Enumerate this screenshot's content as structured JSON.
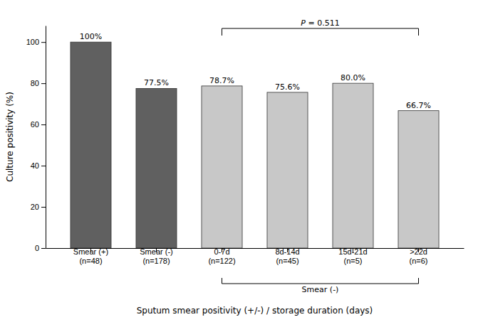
{
  "chart_data": {
    "type": "bar",
    "categories": [
      "Smear (+)\n(n=48)",
      "Smear (-)\n(n=178)",
      "0-7d\n(n=122)",
      "8d-14d\n(n=45)",
      "15d-21d\n(n=5)",
      ">22d\n(n=6)"
    ],
    "values": [
      100.0,
      77.5,
      78.7,
      75.6,
      80.0,
      66.7
    ],
    "value_labels": [
      "100%",
      "77.5%",
      "78.7%",
      "75.6%",
      "80.0%",
      "66.7%"
    ],
    "data_labels": true,
    "colors": [
      "#606060",
      "#606060",
      "#c8c8c8",
      "#c8c8c8",
      "#c8c8c8",
      "#c8c8c8"
    ],
    "ylabel": "Culture positivity (%)",
    "xlabel": "Sputum smear positivity (+/-)  /  storage duration (days)",
    "ylim": [
      0,
      108
    ],
    "yticks": [
      0,
      20,
      40,
      60,
      80,
      100
    ],
    "grid": false,
    "annotations": [
      {
        "text": "P = 0.511",
        "from": "0-7d\n(n=122)",
        "to": ">22d\n(n=6)"
      },
      {
        "text": "Smear (-)",
        "from": "0-7d\n(n=122)",
        "to": ">22d\n(n=6)"
      }
    ]
  }
}
